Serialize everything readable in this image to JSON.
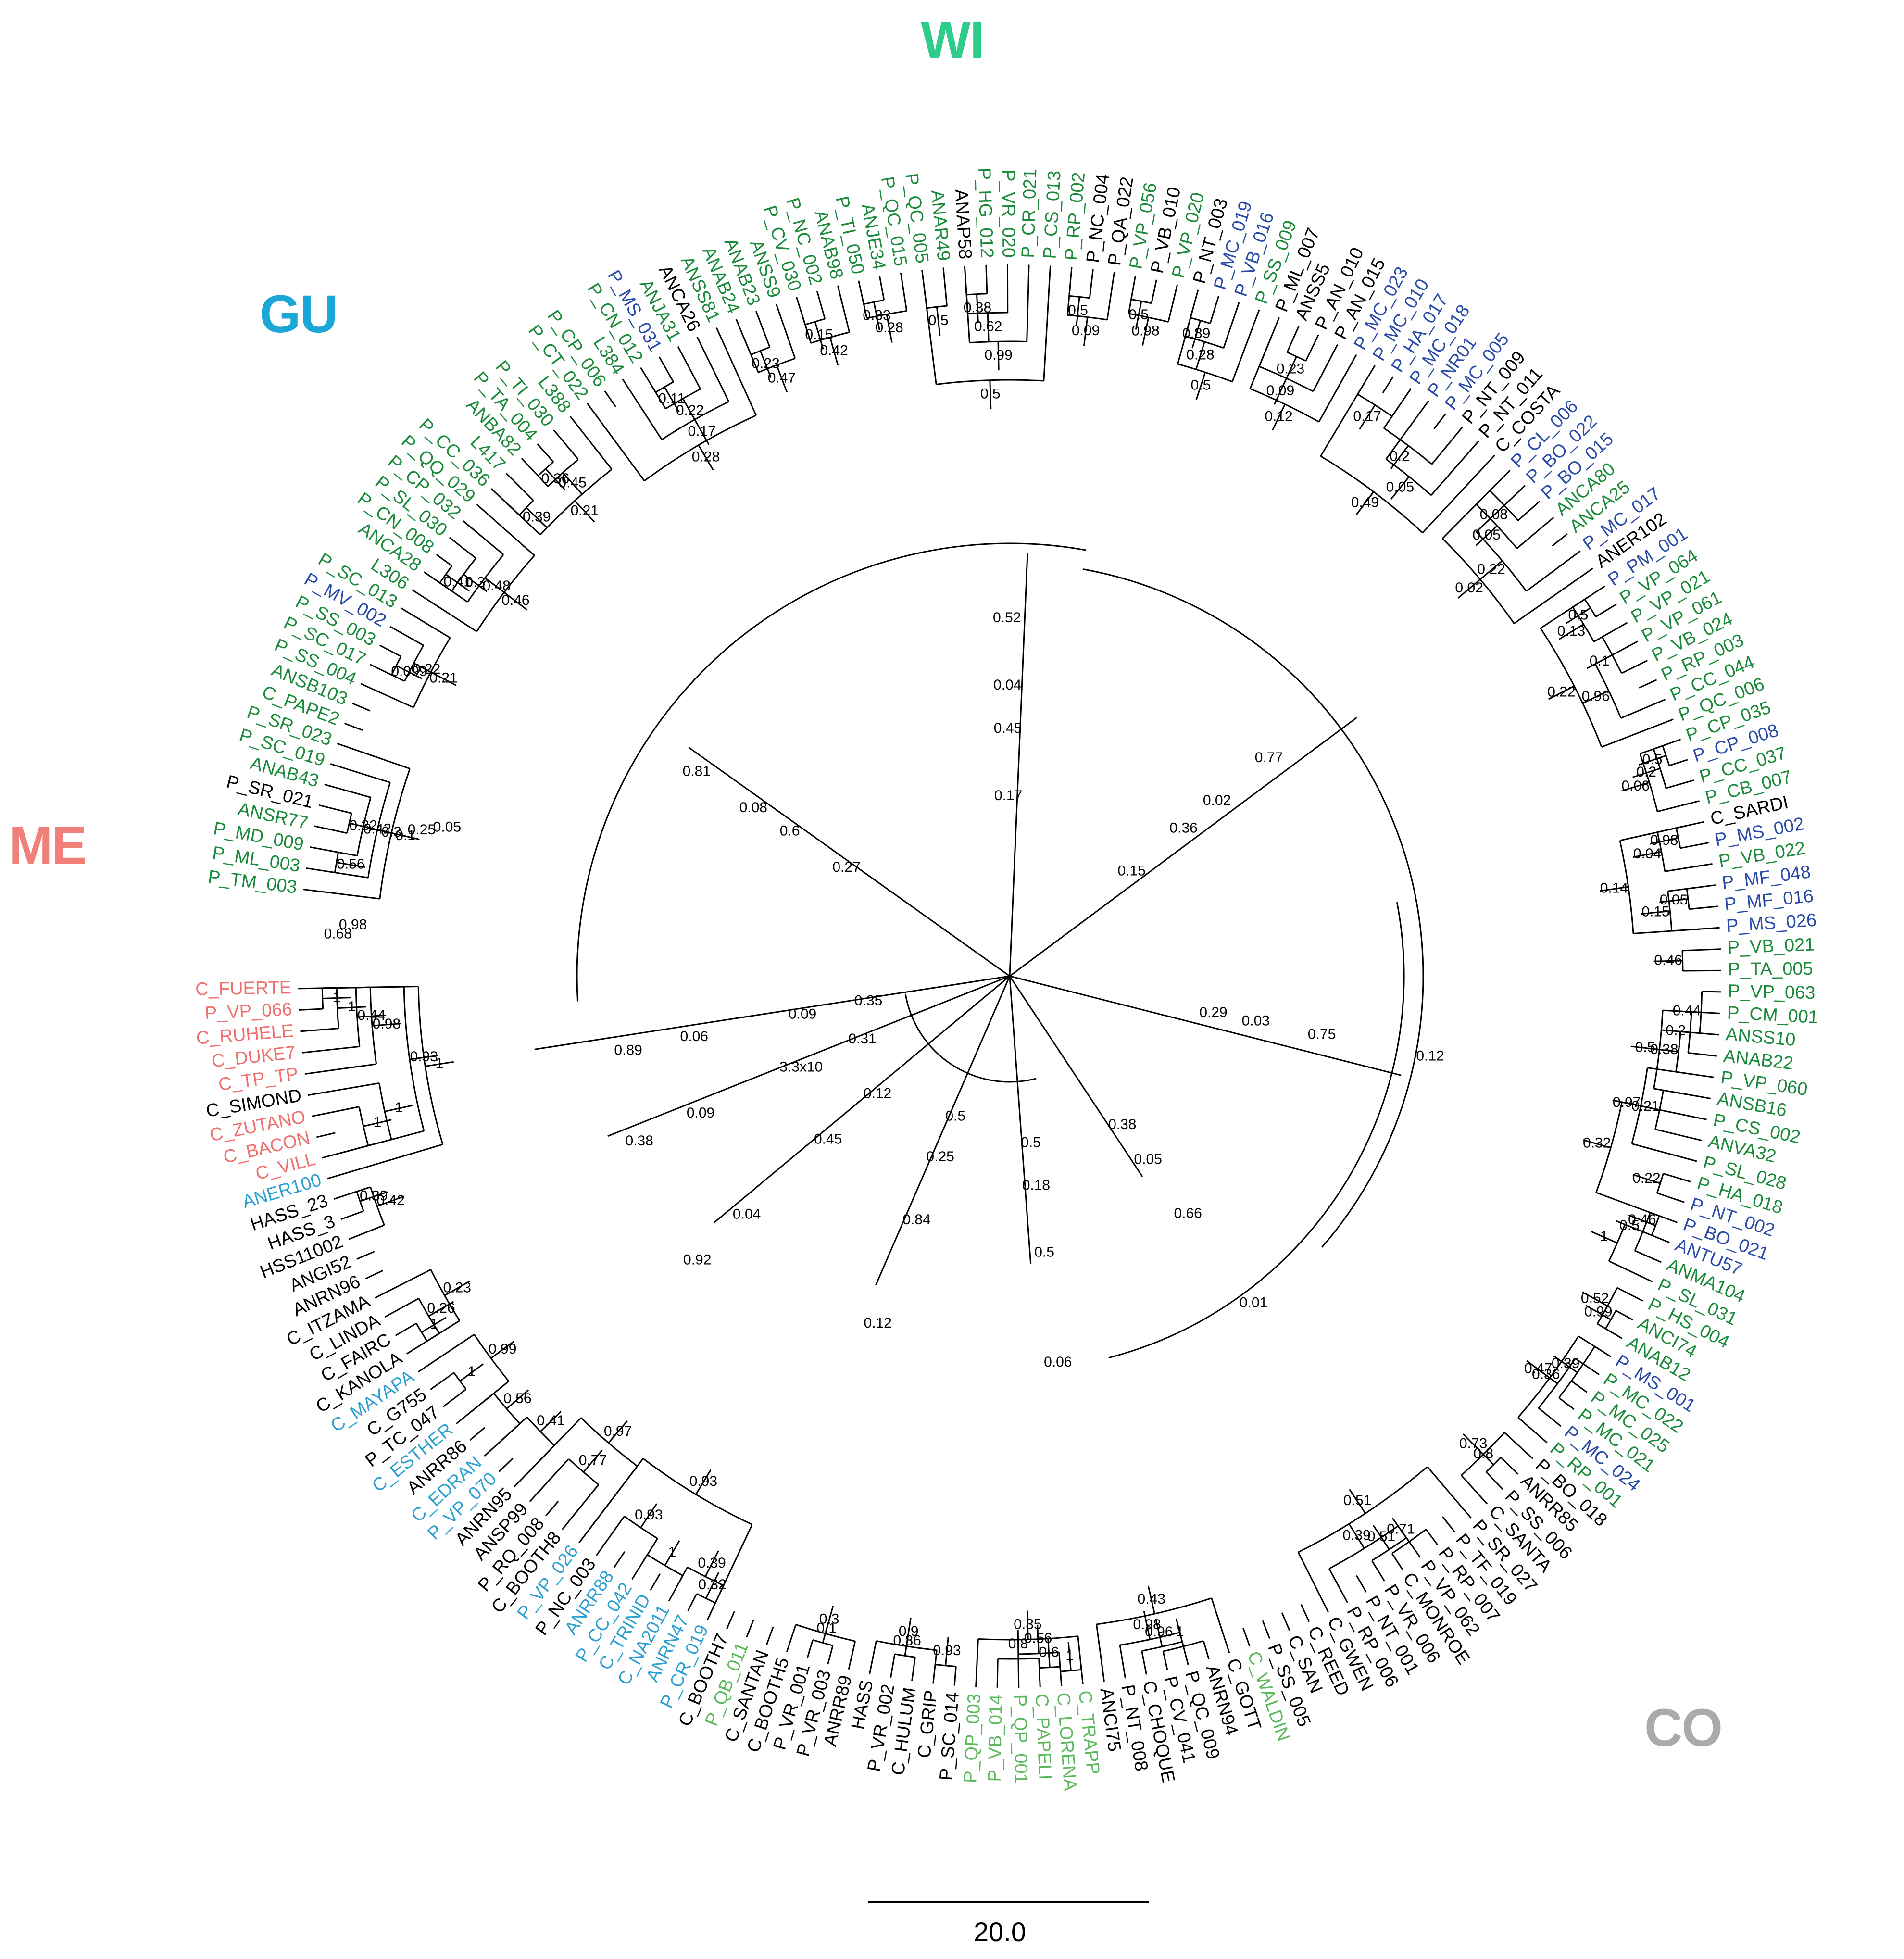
{
  "colors": {
    "WI": "#2ecc8a",
    "GU": "#1aa6d6",
    "ME": "#f08078",
    "CO": "#aaaaaa",
    "light_green": "#5cb85c",
    "dark_green": "#1a8a3a",
    "blue": "#2a4aa8",
    "cyan": "#2a9fd0",
    "salmon": "#ef6f6c",
    "black": "#000000"
  },
  "groups": {
    "WI": "WI",
    "GU": "GU",
    "ME": "ME",
    "CO": "CO"
  },
  "scale_bar": "20.0",
  "leaves": [
    {
      "name": "C_FUERTE",
      "c": "salmon"
    },
    {
      "name": "P_VP_066",
      "c": "salmon"
    },
    {
      "name": "C_RUHELE",
      "c": "salmon"
    },
    {
      "name": "C_DUKE7",
      "c": "salmon"
    },
    {
      "name": "C_TP_TP",
      "c": "salmon"
    },
    {
      "name": "C_SIMOND",
      "c": "black"
    },
    {
      "name": "C_ZUTANO",
      "c": "salmon"
    },
    {
      "name": "C_BACON",
      "c": "salmon"
    },
    {
      "name": "C_VILL",
      "c": "salmon"
    },
    {
      "name": "ANER100",
      "c": "cyan"
    },
    {
      "name": "HASS_23",
      "c": "black"
    },
    {
      "name": "HASS_3",
      "c": "black"
    },
    {
      "name": "HSS11002",
      "c": "black"
    },
    {
      "name": "ANGI52",
      "c": "black"
    },
    {
      "name": "ANRN96",
      "c": "black"
    },
    {
      "name": "C_ITZAMA",
      "c": "black"
    },
    {
      "name": "C_LINDA",
      "c": "black"
    },
    {
      "name": "C_FAIRC",
      "c": "black"
    },
    {
      "name": "C_KANOLA",
      "c": "black"
    },
    {
      "name": "C_MAYAPA",
      "c": "cyan"
    },
    {
      "name": "C_G755",
      "c": "black"
    },
    {
      "name": "P_TC_047",
      "c": "black"
    },
    {
      "name": "C_ESTHER",
      "c": "cyan"
    },
    {
      "name": "ANRR86",
      "c": "black"
    },
    {
      "name": "C_EDRAN",
      "c": "cyan"
    },
    {
      "name": "P_VP_070",
      "c": "cyan"
    },
    {
      "name": "ANRN95",
      "c": "black"
    },
    {
      "name": "ANSP99",
      "c": "black"
    },
    {
      "name": "P_RQ_008",
      "c": "black"
    },
    {
      "name": "C_BOOTH8",
      "c": "black"
    },
    {
      "name": "P_VP_026",
      "c": "cyan"
    },
    {
      "name": "P_NC_003",
      "c": "black"
    },
    {
      "name": "ANRR88",
      "c": "cyan"
    },
    {
      "name": "P_CC_042",
      "c": "cyan"
    },
    {
      "name": "C_TRINID",
      "c": "cyan"
    },
    {
      "name": "C_NA2011",
      "c": "cyan"
    },
    {
      "name": "ANRN47",
      "c": "cyan"
    },
    {
      "name": "P_CR_019",
      "c": "cyan"
    },
    {
      "name": "C_BOOTH7",
      "c": "black"
    },
    {
      "name": "P_QB_011",
      "c": "light_green"
    },
    {
      "name": "C_SANTAN",
      "c": "black"
    },
    {
      "name": "C_BOOTH5",
      "c": "black"
    },
    {
      "name": "P_VR_001",
      "c": "black"
    },
    {
      "name": "P_VR_003",
      "c": "black"
    },
    {
      "name": "ANRR89",
      "c": "black"
    },
    {
      "name": "HASS",
      "c": "black"
    },
    {
      "name": "P_VR_002",
      "c": "black"
    },
    {
      "name": "C_HULUM",
      "c": "black"
    },
    {
      "name": "C_GRIP",
      "c": "black"
    },
    {
      "name": "P_SC_014",
      "c": "black"
    },
    {
      "name": "P_QP_003",
      "c": "light_green"
    },
    {
      "name": "P_VB_014",
      "c": "light_green"
    },
    {
      "name": "P_QP_001",
      "c": "light_green"
    },
    {
      "name": "C_PAPELI",
      "c": "light_green"
    },
    {
      "name": "C_LORENA",
      "c": "light_green"
    },
    {
      "name": "C_TRAPP",
      "c": "light_green"
    },
    {
      "name": "ANCI75",
      "c": "black"
    },
    {
      "name": "P_NT_008",
      "c": "black"
    },
    {
      "name": "C_CHOQUE",
      "c": "black"
    },
    {
      "name": "P_CV_041",
      "c": "black"
    },
    {
      "name": "P_QC_009",
      "c": "black"
    },
    {
      "name": "ANRN94",
      "c": "black"
    },
    {
      "name": "C_GOTT",
      "c": "black"
    },
    {
      "name": "C_WALDIN",
      "c": "light_green"
    },
    {
      "name": "P_SS_005",
      "c": "black"
    },
    {
      "name": "C_SAN",
      "c": "black"
    },
    {
      "name": "C_REED",
      "c": "black"
    },
    {
      "name": "C_GWEN",
      "c": "black"
    },
    {
      "name": "P_RP_006",
      "c": "black"
    },
    {
      "name": "P_NT_001",
      "c": "black"
    },
    {
      "name": "P_VR_006",
      "c": "black"
    },
    {
      "name": "C_MONROE",
      "c": "black"
    },
    {
      "name": "P_VP_062",
      "c": "black"
    },
    {
      "name": "P_RP_007",
      "c": "black"
    },
    {
      "name": "P_TF_019",
      "c": "black"
    },
    {
      "name": "P_SR_027",
      "c": "black"
    },
    {
      "name": "C_SANTA",
      "c": "black"
    },
    {
      "name": "P_SS_006",
      "c": "black"
    },
    {
      "name": "ANRR85",
      "c": "black"
    },
    {
      "name": "P_BO_018",
      "c": "black"
    },
    {
      "name": "P_RP_001",
      "c": "dark_green"
    },
    {
      "name": "P_MC_024",
      "c": "blue"
    },
    {
      "name": "P_MC_021",
      "c": "dark_green"
    },
    {
      "name": "P_MC_025",
      "c": "dark_green"
    },
    {
      "name": "P_MC_022",
      "c": "dark_green"
    },
    {
      "name": "P_MS_001",
      "c": "blue"
    },
    {
      "name": "ANAB12",
      "c": "dark_green"
    },
    {
      "name": "ANCI74",
      "c": "dark_green"
    },
    {
      "name": "P_HS_004",
      "c": "dark_green"
    },
    {
      "name": "P_SL_031",
      "c": "dark_green"
    },
    {
      "name": "ANMA104",
      "c": "dark_green"
    },
    {
      "name": "ANTU57",
      "c": "blue"
    },
    {
      "name": "P_BO_021",
      "c": "blue"
    },
    {
      "name": "P_NT_002",
      "c": "blue"
    },
    {
      "name": "P_HA_018",
      "c": "dark_green"
    },
    {
      "name": "P_SL_028",
      "c": "dark_green"
    },
    {
      "name": "ANVA32",
      "c": "dark_green"
    },
    {
      "name": "P_CS_002",
      "c": "dark_green"
    },
    {
      "name": "ANSB16",
      "c": "dark_green"
    },
    {
      "name": "P_VP_060",
      "c": "dark_green"
    },
    {
      "name": "ANAB22",
      "c": "dark_green"
    },
    {
      "name": "ANSS10",
      "c": "dark_green"
    },
    {
      "name": "P_CM_001",
      "c": "dark_green"
    },
    {
      "name": "P_VP_063",
      "c": "dark_green"
    },
    {
      "name": "P_TA_005",
      "c": "dark_green"
    },
    {
      "name": "P_VB_021",
      "c": "dark_green"
    },
    {
      "name": "P_MS_026",
      "c": "blue"
    },
    {
      "name": "P_MF_016",
      "c": "blue"
    },
    {
      "name": "P_MF_048",
      "c": "blue"
    },
    {
      "name": "P_VB_022",
      "c": "dark_green"
    },
    {
      "name": "P_MS_002",
      "c": "blue"
    },
    {
      "name": "C_SARDI",
      "c": "black"
    },
    {
      "name": "P_CB_007",
      "c": "dark_green"
    },
    {
      "name": "P_CC_037",
      "c": "dark_green"
    },
    {
      "name": "P_CP_008",
      "c": "blue"
    },
    {
      "name": "P_CP_035",
      "c": "dark_green"
    },
    {
      "name": "P_QC_006",
      "c": "dark_green"
    },
    {
      "name": "P_CC_044",
      "c": "dark_green"
    },
    {
      "name": "P_RP_003",
      "c": "dark_green"
    },
    {
      "name": "P_VB_024",
      "c": "dark_green"
    },
    {
      "name": "P_VP_061",
      "c": "dark_green"
    },
    {
      "name": "P_VP_021",
      "c": "dark_green"
    },
    {
      "name": "P_VP_064",
      "c": "dark_green"
    },
    {
      "name": "P_PM_001",
      "c": "blue"
    },
    {
      "name": "ANER102",
      "c": "black"
    },
    {
      "name": "P_MC_017",
      "c": "blue"
    },
    {
      "name": "ANCA25",
      "c": "dark_green"
    },
    {
      "name": "ANCA80",
      "c": "dark_green"
    },
    {
      "name": "P_BO_015",
      "c": "blue"
    },
    {
      "name": "P_BO_022",
      "c": "blue"
    },
    {
      "name": "P_CL_006",
      "c": "blue"
    },
    {
      "name": "C_COSTA",
      "c": "black"
    },
    {
      "name": "P_NT_011",
      "c": "black"
    },
    {
      "name": "P_NT_009",
      "c": "black"
    },
    {
      "name": "P_MC_005",
      "c": "blue"
    },
    {
      "name": "P_NR01",
      "c": "blue"
    },
    {
      "name": "P_MC_018",
      "c": "blue"
    },
    {
      "name": "P_HA_017",
      "c": "blue"
    },
    {
      "name": "P_MC_010",
      "c": "blue"
    },
    {
      "name": "P_MC_023",
      "c": "blue"
    },
    {
      "name": "P_AN_015",
      "c": "black"
    },
    {
      "name": "P_AN_010",
      "c": "black"
    },
    {
      "name": "ANSS5",
      "c": "black"
    },
    {
      "name": "P_ML_007",
      "c": "black"
    },
    {
      "name": "P_SS_009",
      "c": "dark_green"
    },
    {
      "name": "P_VB_016",
      "c": "blue"
    },
    {
      "name": "P_MC_019",
      "c": "blue"
    },
    {
      "name": "P_NT_003",
      "c": "black"
    },
    {
      "name": "P_VP_020",
      "c": "dark_green"
    },
    {
      "name": "P_VB_010",
      "c": "black"
    },
    {
      "name": "P_VP_056",
      "c": "dark_green"
    },
    {
      "name": "P_QA_022",
      "c": "black"
    },
    {
      "name": "P_NC_004",
      "c": "black"
    },
    {
      "name": "P_RP_002",
      "c": "dark_green"
    },
    {
      "name": "P_CS_013",
      "c": "dark_green"
    },
    {
      "name": "P_CR_021",
      "c": "dark_green"
    },
    {
      "name": "P_VR_020",
      "c": "dark_green"
    },
    {
      "name": "P_HG_012",
      "c": "dark_green"
    },
    {
      "name": "ANAP58",
      "c": "black"
    },
    {
      "name": "ANAR49",
      "c": "dark_green"
    },
    {
      "name": "P_QC_005",
      "c": "dark_green"
    },
    {
      "name": "P_QC_015",
      "c": "dark_green"
    },
    {
      "name": "ANJE34",
      "c": "dark_green"
    },
    {
      "name": "P_TI_050",
      "c": "dark_green"
    },
    {
      "name": "ANAB98",
      "c": "dark_green"
    },
    {
      "name": "P_NC_002",
      "c": "dark_green"
    },
    {
      "name": "P_CV_030",
      "c": "dark_green"
    },
    {
      "name": "ANSS9",
      "c": "dark_green"
    },
    {
      "name": "ANAB23",
      "c": "dark_green"
    },
    {
      "name": "ANAB24",
      "c": "dark_green"
    },
    {
      "name": "ANSS81",
      "c": "dark_green"
    },
    {
      "name": "ANCA26",
      "c": "black"
    },
    {
      "name": "ANJA31",
      "c": "dark_green"
    },
    {
      "name": "P_MS_031",
      "c": "blue"
    },
    {
      "name": "P_CN_012",
      "c": "dark_green"
    },
    {
      "name": "L384",
      "c": "dark_green"
    },
    {
      "name": "P_CP_006",
      "c": "dark_green"
    },
    {
      "name": "P_CT_022",
      "c": "dark_green"
    },
    {
      "name": "L388",
      "c": "dark_green"
    },
    {
      "name": "P_TI_030",
      "c": "dark_green"
    },
    {
      "name": "P_TA_004",
      "c": "dark_green"
    },
    {
      "name": "ANBA82",
      "c": "dark_green"
    },
    {
      "name": "L417",
      "c": "dark_green"
    },
    {
      "name": "P_CC_036",
      "c": "dark_green"
    },
    {
      "name": "P_QQ_029",
      "c": "dark_green"
    },
    {
      "name": "P_CP_032",
      "c": "dark_green"
    },
    {
      "name": "P_SL_030",
      "c": "dark_green"
    },
    {
      "name": "P_CN_008",
      "c": "dark_green"
    },
    {
      "name": "ANCA28",
      "c": "dark_green"
    },
    {
      "name": "L306",
      "c": "dark_green"
    },
    {
      "name": "P_SC_013",
      "c": "dark_green"
    },
    {
      "name": "P_MV_002",
      "c": "blue"
    },
    {
      "name": "P_SS_003",
      "c": "dark_green"
    },
    {
      "name": "P_SC_017",
      "c": "dark_green"
    },
    {
      "name": "P_SS_004",
      "c": "dark_green"
    },
    {
      "name": "ANSB103",
      "c": "dark_green"
    },
    {
      "name": "C_PAPE2",
      "c": "dark_green"
    },
    {
      "name": "P_SR_023",
      "c": "dark_green"
    },
    {
      "name": "P_SC_019",
      "c": "dark_green"
    },
    {
      "name": "ANAB43",
      "c": "dark_green"
    },
    {
      "name": "P_SR_021",
      "c": "black"
    },
    {
      "name": "ANSR77",
      "c": "dark_green"
    },
    {
      "name": "P_MD_009",
      "c": "dark_green"
    },
    {
      "name": "P_ML_003",
      "c": "dark_green"
    },
    {
      "name": "P_TM_003",
      "c": "dark_green"
    }
  ],
  "support_values": [
    "0.98",
    "0.44",
    "1",
    "1",
    "0.93",
    "1",
    "1",
    "1",
    "0.42",
    "0.39",
    "0.23",
    "0.26",
    "1",
    "0.99",
    "1",
    "0.56",
    "0.41",
    "0.97",
    "0.77",
    "0.93",
    "0.93",
    "1",
    "0.39",
    "0.32",
    "0.3",
    "0.1",
    "0.9",
    "0.86",
    "0.93",
    "0.35",
    "0.8",
    "0.56",
    "0.6",
    "1",
    "0.43",
    "0.98",
    "0.96",
    "1",
    "0.51",
    "0.39",
    "0.51",
    "0.71",
    "0.73",
    "0.8",
    "0.47",
    "0.36",
    "0.39",
    "0.52",
    "0.99",
    "1",
    "0.5",
    "0.46",
    "0.22",
    "0.32",
    "0.97",
    "0.21",
    "0.5",
    "0.38",
    "0.2",
    "0.44",
    "0.46",
    "0.15",
    "0.05",
    "0.04",
    "0.98",
    "0.14",
    "0.06",
    "0.2",
    "0.5",
    "0.22",
    "0.96",
    "0.1",
    "0.13",
    "0.5",
    "0.02",
    "0.22",
    "0.05",
    "0.08",
    "0.49",
    "0.05",
    "0.2",
    "0.17",
    "0.12",
    "0.09",
    "0.23",
    "0.5",
    "0.28",
    "0.89",
    "0.98",
    "0.5",
    "0.09",
    "0.5",
    "0.5",
    "0.99",
    "0.62",
    "0.38",
    "0.5",
    "0.28",
    "0.33",
    "0.42",
    "0.15",
    "0.47",
    "0.23",
    "0.28",
    "0.17",
    "0.22",
    "0.11",
    "0.21",
    "0.45",
    "0.36",
    "0.39",
    "0.46",
    "0.48",
    "0.3",
    "0.41",
    "0.21",
    "0.22",
    "0.099",
    "0.05",
    "0.25",
    "0.1",
    "0.3",
    "0.42",
    "0.32",
    "0.56",
    "0.98",
    "0.68",
    "0.35",
    "0.31",
    "0.12",
    "0.25",
    "0.18",
    "0.05",
    "0.03",
    "0.02",
    "0.04",
    "0.08",
    "0.06",
    "0.09",
    "0.04",
    "0.12",
    "0.06",
    "0.01",
    "0.12",
    "0.15",
    "0.17",
    "0.27",
    "0.09",
    "3.3x10",
    "0.45",
    "0.84",
    "0.5",
    "0.66",
    "0.75",
    "0.77",
    "0.52",
    "0.81",
    "0.89",
    "0.38",
    "0.92",
    "0.5",
    "0.5",
    "0.38",
    "0.29",
    "0.36",
    "0.45",
    "0.6"
  ]
}
